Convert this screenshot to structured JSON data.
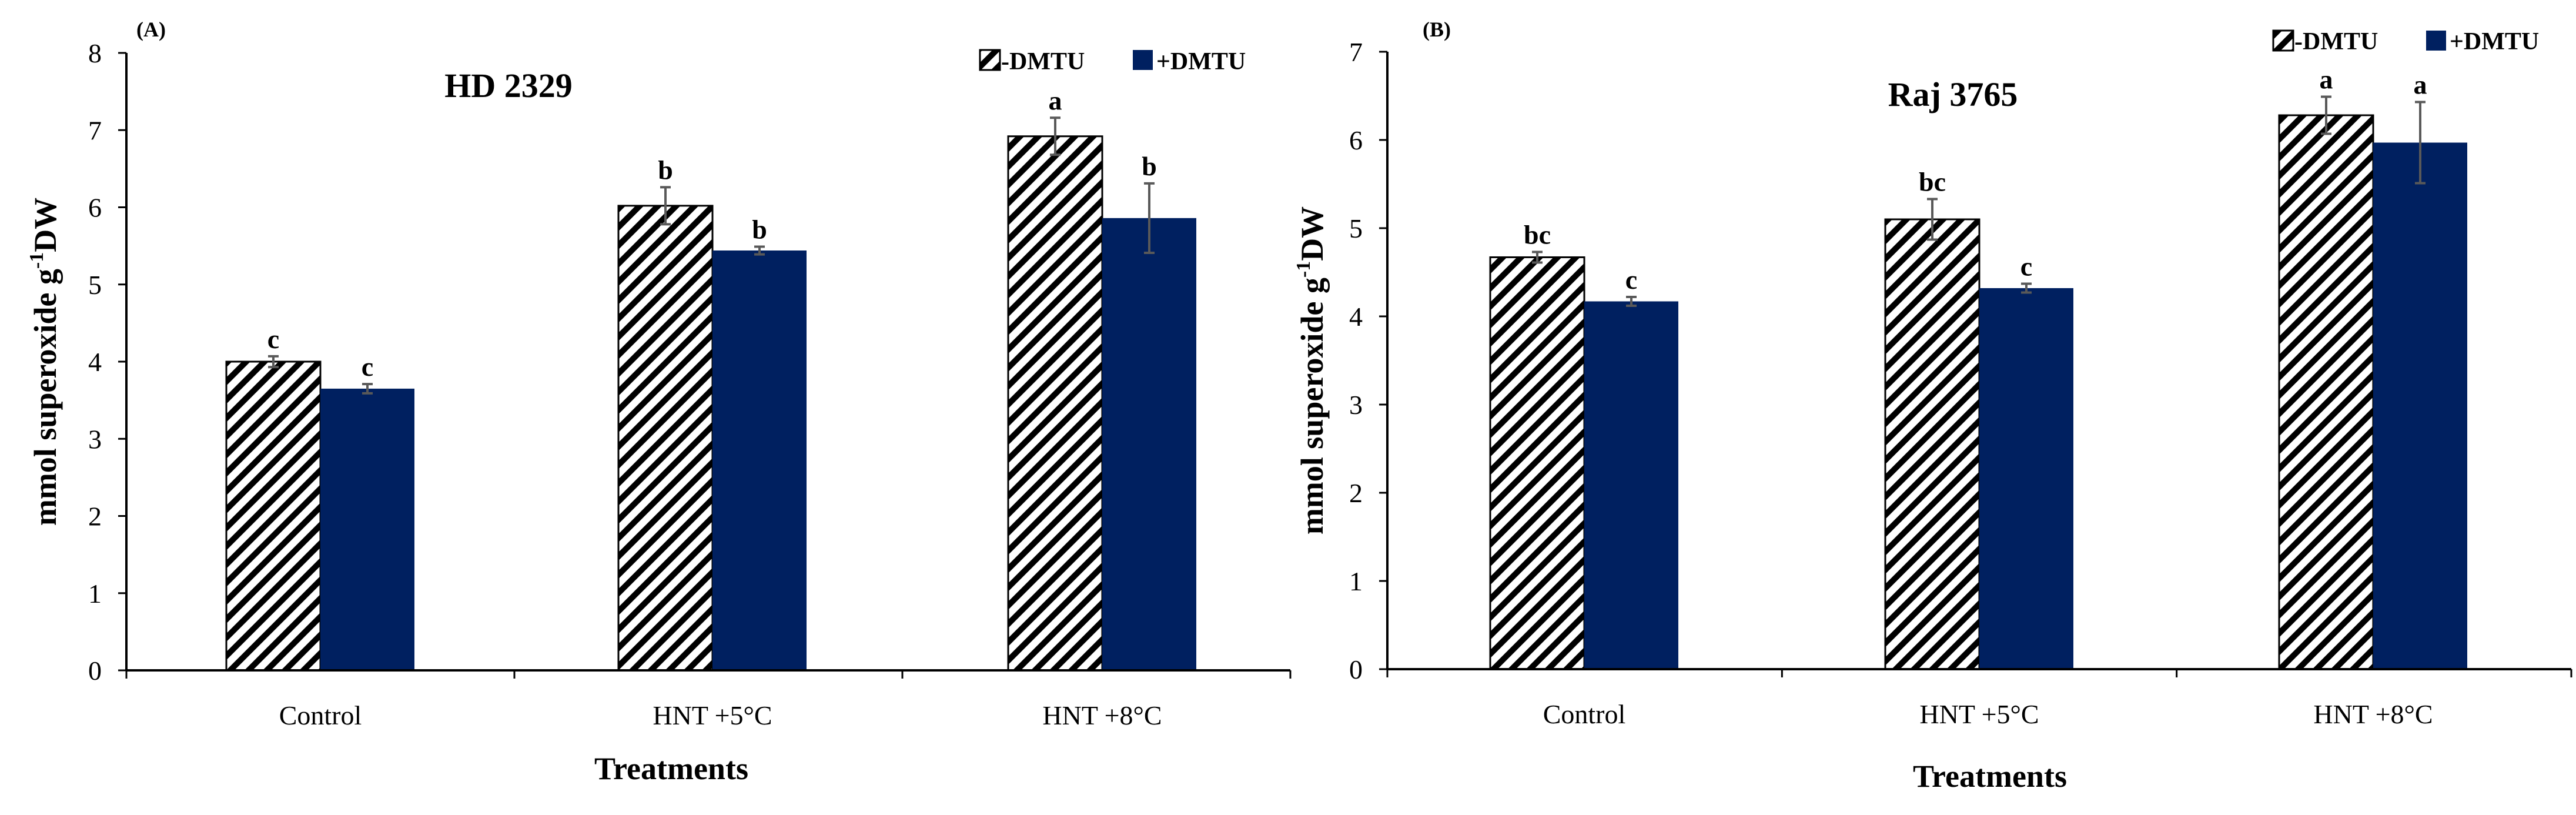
{
  "colors": {
    "dmtu_minus_fill": "hatched black/white",
    "dmtu_plus_fill": "#002060",
    "error_bar": "#595959",
    "axis": "#000000"
  },
  "chart_data": [
    {
      "type": "bar",
      "panel_label": "(A)",
      "title": "HD 2329",
      "xlabel": "Treatments",
      "ylabel_main": "mmol superoxide g",
      "ylabel_sup": "-1",
      "ylabel_end": "DW",
      "ylim": [
        0,
        8
      ],
      "yticks": [
        "0",
        "1",
        "2",
        "3",
        "4",
        "5",
        "6",
        "7",
        "8"
      ],
      "grid": false,
      "legend_position": "top-right",
      "categories": [
        "Control",
        "HNT +5°C",
        "HNT +8°C"
      ],
      "series": [
        {
          "name": "-DMTU",
          "pattern": "hatched",
          "values": [
            4.0,
            6.02,
            6.92
          ],
          "errors": [
            0.07,
            0.24,
            0.24
          ],
          "labels": [
            "c",
            "b",
            "a"
          ]
        },
        {
          "name": "+DMTU",
          "pattern": "solid",
          "values": [
            3.65,
            5.44,
            5.86
          ],
          "errors": [
            0.06,
            0.05,
            0.45
          ],
          "labels": [
            "c",
            "b",
            "b"
          ]
        }
      ]
    },
    {
      "type": "bar",
      "panel_label": "(B)",
      "title": "Raj 3765",
      "xlabel": "Treatments",
      "ylabel_main": "mmol superoxide g",
      "ylabel_sup": "-1",
      "ylabel_end": "DW",
      "ylim": [
        0,
        7
      ],
      "yticks": [
        "0",
        "1",
        "2",
        "3",
        "4",
        "5",
        "6",
        "7"
      ],
      "grid": false,
      "legend_position": "top-right",
      "categories": [
        "Control",
        "HNT +5°C",
        "HNT +8°C"
      ],
      "series": [
        {
          "name": "-DMTU",
          "pattern": "hatched",
          "values": [
            4.67,
            5.1,
            6.28
          ],
          "errors": [
            0.06,
            0.23,
            0.21
          ],
          "labels": [
            "bc",
            "bc",
            "a"
          ]
        },
        {
          "name": "+DMTU",
          "pattern": "solid",
          "values": [
            4.17,
            4.32,
            5.97
          ],
          "errors": [
            0.05,
            0.05,
            0.46
          ],
          "labels": [
            "c",
            "c",
            "a"
          ]
        }
      ]
    }
  ]
}
